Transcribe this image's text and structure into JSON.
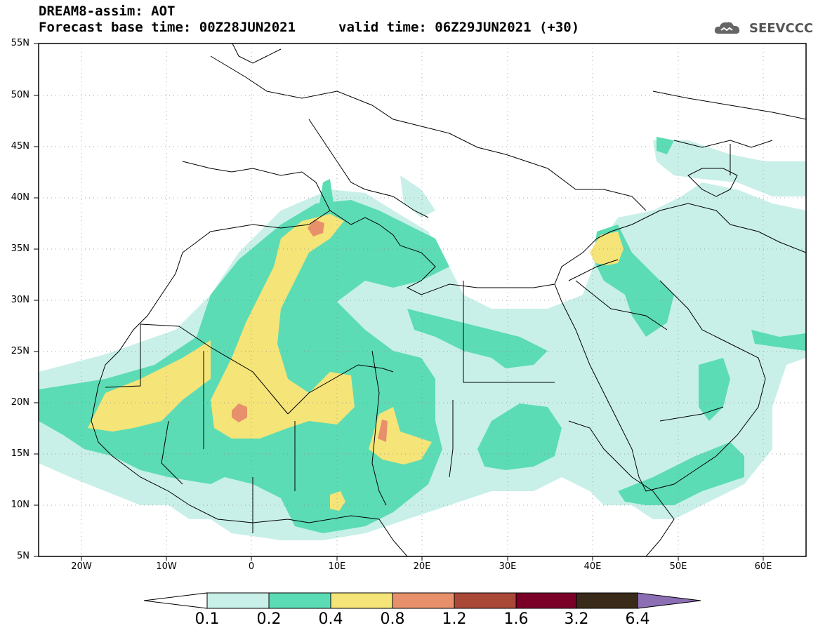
{
  "header": {
    "title": "DREAM8-assim: AOT",
    "base_time": "Forecast base time: 00Z28JUN2021",
    "valid_time": "valid time: 06Z29JUN2021 (+30)",
    "logo_text": "SEEVCCC"
  },
  "map": {
    "lat_labels": [
      "55N",
      "50N",
      "45N",
      "40N",
      "35N",
      "30N",
      "25N",
      "20N",
      "15N",
      "10N",
      "5N"
    ],
    "lon_labels": [
      "20W",
      "10W",
      "0",
      "10E",
      "20E",
      "30E",
      "40E",
      "50E",
      "60E"
    ],
    "lat_range": [
      5,
      55
    ],
    "lon_range": [
      -25,
      65
    ]
  },
  "colorbar": {
    "levels": [
      "0.1",
      "0.2",
      "0.4",
      "0.8",
      "1.2",
      "1.6",
      "3.2",
      "6.4"
    ],
    "colors": [
      "#ffffff",
      "#c8f0e8",
      "#5cdcb4",
      "#f5e478",
      "#e8906c",
      "#aa4838",
      "#7a0028",
      "#3a2a1a",
      "#8c6eb4"
    ]
  }
}
